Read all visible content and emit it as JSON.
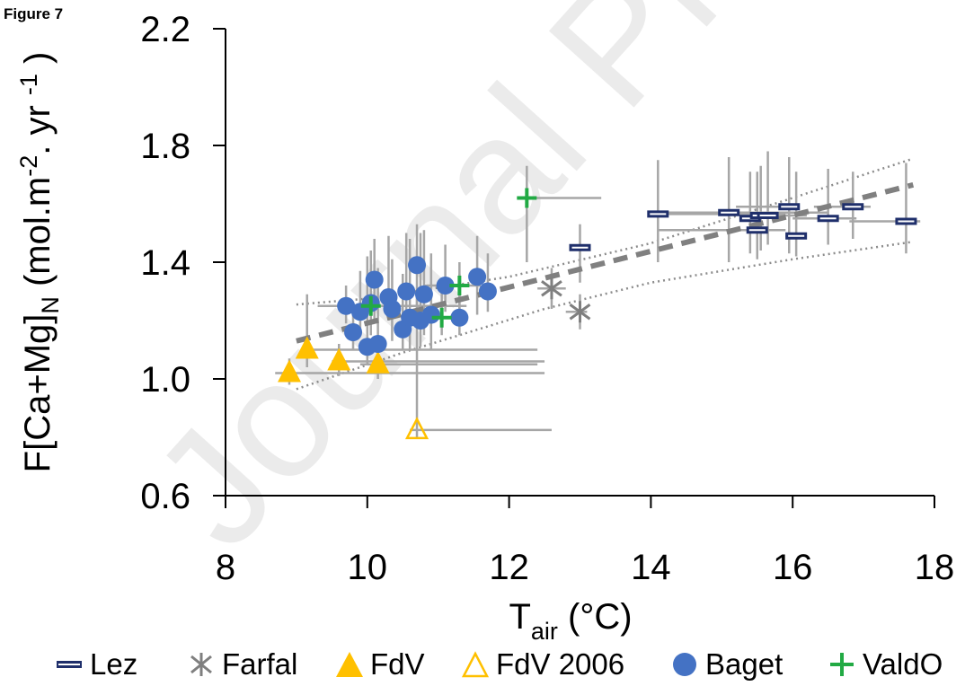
{
  "figure_label": "Figure 7",
  "watermark": "Journal Pre-proof",
  "chart_data": {
    "type": "scatter",
    "title": "",
    "xlabel_main": "T",
    "xlabel_sub": "air",
    "xlabel_unit": " (°C)",
    "ylabel_main": "F[Ca+Mg]",
    "ylabel_sub": "N",
    "ylabel_unit_a": " (mol.m",
    "ylabel_sup_a": "-2",
    "ylabel_unit_b": ". yr ",
    "ylabel_sup_b": "-1",
    "ylabel_unit_c": " )",
    "xlim": [
      8,
      18
    ],
    "ylim": [
      0.6,
      2.2
    ],
    "x_ticks": [
      8,
      10,
      12,
      14,
      16,
      18
    ],
    "x_tick_labels": [
      "8",
      "10",
      "12",
      "14",
      "16",
      "18"
    ],
    "y_ticks": [
      0.6,
      1.0,
      1.4,
      1.8,
      2.2
    ],
    "y_tick_labels": [
      "0.6",
      "1.0",
      "1.4",
      "1.8",
      "2.2"
    ],
    "grid": false,
    "legend_position": "bottom",
    "colors": {
      "Lez": "#1f2f6b",
      "Farfal": "#7f7f7f",
      "FdV": "#ffc000",
      "FdV 2006": "#ffc000",
      "Baget": "#4472c4",
      "ValdO": "#22aa44",
      "errorbar": "#a6a6a6",
      "fit": "#808080"
    },
    "series": [
      {
        "name": "Lez",
        "marker": "dash",
        "points": [
          {
            "x": 13.0,
            "y": 1.45,
            "ey": [
              1.33,
              1.53
            ],
            "ex": null
          },
          {
            "x": 14.1,
            "y": 1.565,
            "ey": [
              1.4,
              1.75
            ],
            "ex": [
              14.0,
              15.9
            ]
          },
          {
            "x": 15.1,
            "y": 1.57,
            "ey": [
              1.4,
              1.76
            ],
            "ex": [
              14.1,
              16.5
            ]
          },
          {
            "x": 15.4,
            "y": 1.55,
            "ey": [
              1.43,
              1.71
            ],
            "ex": null
          },
          {
            "x": 15.5,
            "y": 1.51,
            "ey": [
              1.41,
              1.71
            ],
            "ex": [
              14.1,
              15.9
            ]
          },
          {
            "x": 15.55,
            "y": 1.56,
            "ey": [
              1.44,
              1.73
            ],
            "ex": null
          },
          {
            "x": 15.65,
            "y": 1.56,
            "ey": [
              1.46,
              1.78
            ],
            "ex": [
              15.4,
              16.2
            ]
          },
          {
            "x": 15.95,
            "y": 1.59,
            "ey": [
              1.43,
              1.76
            ],
            "ex": [
              15.2,
              16.0
            ]
          },
          {
            "x": 16.05,
            "y": 1.49,
            "ey": [
              1.42,
              1.71
            ],
            "ex": [
              15.9,
              16.2
            ]
          },
          {
            "x": 16.5,
            "y": 1.55,
            "ey": [
              1.46,
              1.72
            ],
            "ex": [
              16.0,
              16.9
            ]
          },
          {
            "x": 16.85,
            "y": 1.59,
            "ey": [
              1.48,
              1.71
            ],
            "ex": [
              16.3,
              17.1
            ]
          },
          {
            "x": 17.6,
            "y": 1.54,
            "ey": [
              1.43,
              1.74
            ],
            "ex": [
              16.8,
              17.8
            ]
          }
        ]
      },
      {
        "name": "Farfal",
        "marker": "asterisk",
        "points": [
          {
            "x": 12.6,
            "y": 1.31,
            "ey": [
              1.24,
              1.38
            ],
            "ex": [
              12.4,
              12.8
            ]
          },
          {
            "x": 13.0,
            "y": 1.23,
            "ey": [
              1.17,
              1.29
            ],
            "ex": [
              12.8,
              13.1
            ]
          }
        ]
      },
      {
        "name": "FdV",
        "marker": "triangle-filled",
        "points": [
          {
            "x": 9.15,
            "y": 1.1,
            "ey": [
              1.04,
              1.29
            ],
            "ex": [
              9.1,
              12.4
            ]
          },
          {
            "x": 9.6,
            "y": 1.06,
            "ey": [
              1.01,
              1.12
            ],
            "ex": [
              9.5,
              12.5
            ]
          },
          {
            "x": 10.15,
            "y": 1.05,
            "ey": [
              1.0,
              1.12
            ],
            "ex": [
              9.9,
              12.4
            ]
          },
          {
            "x": 8.9,
            "y": 1.02,
            "ey": [
              0.98,
              1.07
            ],
            "ex": [
              8.7,
              12.5
            ]
          }
        ]
      },
      {
        "name": "FdV 2006",
        "marker": "triangle-open",
        "points": [
          {
            "x": 10.7,
            "y": 0.825,
            "ey": [
              0.8,
              1.31
            ],
            "ex": [
              10.6,
              12.6
            ]
          }
        ]
      },
      {
        "name": "Baget",
        "marker": "circle",
        "points": [
          {
            "x": 9.7,
            "y": 1.25,
            "ey": [
              1.19,
              1.32
            ],
            "ex": [
              9.3,
              10.0
            ]
          },
          {
            "x": 9.8,
            "y": 1.16,
            "ey": [
              1.1,
              1.24
            ],
            "ex": null
          },
          {
            "x": 9.9,
            "y": 1.23,
            "ey": [
              1.16,
              1.37
            ],
            "ex": null
          },
          {
            "x": 10.0,
            "y": 1.11,
            "ey": [
              1.05,
              1.42
            ],
            "ex": null
          },
          {
            "x": 10.05,
            "y": 1.26,
            "ey": [
              1.15,
              1.44
            ],
            "ex": null
          },
          {
            "x": 10.1,
            "y": 1.34,
            "ey": [
              1.2,
              1.48
            ],
            "ex": null
          },
          {
            "x": 10.15,
            "y": 1.12,
            "ey": [
              1.06,
              1.38
            ],
            "ex": null
          },
          {
            "x": 10.3,
            "y": 1.28,
            "ey": [
              1.2,
              1.49
            ],
            "ex": null
          },
          {
            "x": 10.35,
            "y": 1.24,
            "ey": [
              1.13,
              1.41
            ],
            "ex": null
          },
          {
            "x": 10.5,
            "y": 1.17,
            "ey": [
              1.1,
              1.36
            ],
            "ex": null
          },
          {
            "x": 10.55,
            "y": 1.3,
            "ey": [
              1.2,
              1.5
            ],
            "ex": null
          },
          {
            "x": 10.6,
            "y": 1.21,
            "ey": [
              1.1,
              1.48
            ],
            "ex": null
          },
          {
            "x": 10.7,
            "y": 1.39,
            "ey": [
              1.24,
              1.53
            ],
            "ex": null
          },
          {
            "x": 10.75,
            "y": 1.2,
            "ey": [
              1.11,
              1.5
            ],
            "ex": null
          },
          {
            "x": 10.8,
            "y": 1.29,
            "ey": [
              1.15,
              1.51
            ],
            "ex": null
          },
          {
            "x": 10.9,
            "y": 1.22,
            "ey": [
              1.1,
              1.43
            ],
            "ex": null
          },
          {
            "x": 11.1,
            "y": 1.32,
            "ey": [
              1.23,
              1.46
            ],
            "ex": null
          },
          {
            "x": 11.3,
            "y": 1.21,
            "ey": [
              1.15,
              1.36
            ],
            "ex": null
          },
          {
            "x": 11.55,
            "y": 1.35,
            "ey": [
              1.22,
              1.49
            ],
            "ex": null
          },
          {
            "x": 11.7,
            "y": 1.3,
            "ey": [
              1.23,
              1.43
            ],
            "ex": null
          }
        ]
      },
      {
        "name": "ValdO",
        "marker": "plus",
        "points": [
          {
            "x": 10.05,
            "y": 1.25,
            "ey": [
              1.15,
              1.34
            ],
            "ex": [
              9.5,
              11.4
            ]
          },
          {
            "x": 11.05,
            "y": 1.21,
            "ey": [
              1.15,
              1.3
            ],
            "ex": [
              10.5,
              11.4
            ]
          },
          {
            "x": 11.3,
            "y": 1.32,
            "ey": [
              1.23,
              1.4
            ],
            "ex": [
              10.8,
              11.6
            ]
          },
          {
            "x": 12.25,
            "y": 1.62,
            "ey": [
              1.4,
              1.73
            ],
            "ex": [
              12.2,
              13.3
            ]
          }
        ]
      }
    ],
    "fit_line": {
      "x": [
        9.0,
        17.7
      ],
      "y": [
        1.13,
        1.665
      ]
    },
    "confidence_band": {
      "upper": {
        "x": [
          9.0,
          10.0,
          12.0,
          14.0,
          16.0,
          17.7
        ],
        "y": [
          1.255,
          1.275,
          1.35,
          1.465,
          1.62,
          1.755
        ]
      },
      "lower": {
        "x": [
          9.0,
          10.5,
          12.5,
          14.0,
          16.0,
          17.7
        ],
        "y": [
          0.965,
          1.09,
          1.24,
          1.33,
          1.41,
          1.47
        ]
      }
    }
  },
  "legend": {
    "items": [
      "Lez",
      "Farfal",
      "FdV",
      "FdV 2006",
      "Baget",
      "ValdO"
    ]
  }
}
